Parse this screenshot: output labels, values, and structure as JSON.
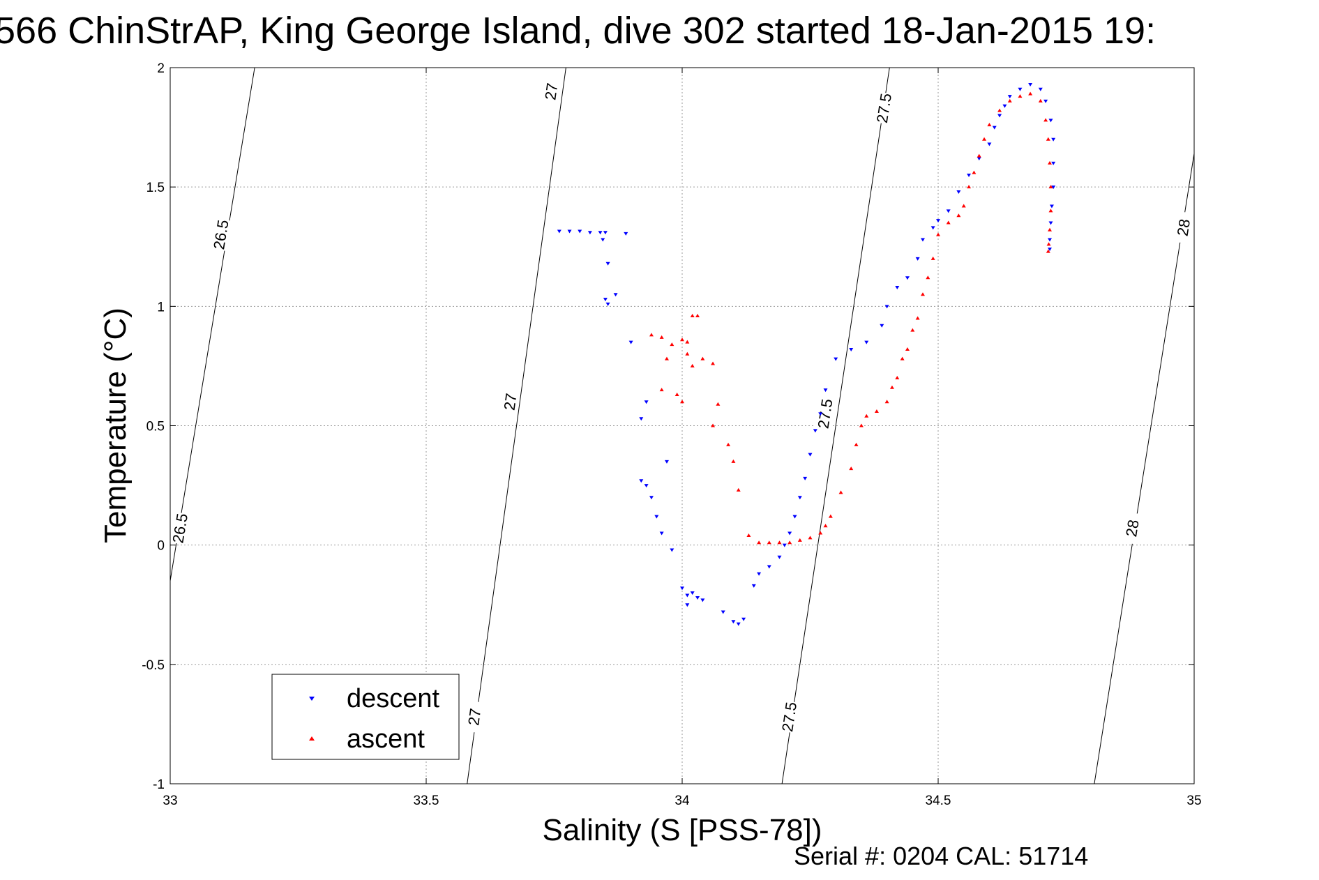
{
  "title": "566 ChinStrAP, King George Island, dive 302 started 18-Jan-2015 19:",
  "footer": "Serial #: 0204  CAL: 51714",
  "chart_data": {
    "type": "scatter",
    "xlabel": "Salinity (S [PSS-78])",
    "ylabel": "Temperature (°C)",
    "xlim": [
      33,
      35
    ],
    "ylim": [
      -1,
      2
    ],
    "xticks": [
      33,
      33.5,
      34,
      34.5,
      35
    ],
    "xtick_labels": [
      "33",
      "33.5",
      "34",
      "34.5",
      "35"
    ],
    "yticks": [
      -1,
      -0.5,
      0,
      0.5,
      1,
      1.5,
      2
    ],
    "ytick_labels": [
      "-1",
      "-0.5",
      "0",
      "0.5",
      "1",
      "1.5",
      "2"
    ],
    "grid": true,
    "legend": "lower-left",
    "density_contours": [
      {
        "label": "26.5",
        "points": [
          [
            33.0,
            -0.15
          ],
          [
            33.165,
            2.0
          ]
        ],
        "label_positions": [
          [
            33.02,
            0.07
          ],
          [
            33.1,
            1.3
          ]
        ]
      },
      {
        "label": "27",
        "points": [
          [
            33.58,
            -1.0
          ],
          [
            33.773,
            2.0
          ]
        ],
        "label_positions": [
          [
            33.595,
            -0.72
          ],
          [
            33.665,
            0.6
          ],
          [
            33.745,
            1.9
          ]
        ]
      },
      {
        "label": "27.5",
        "points": [
          [
            34.195,
            -1.0
          ],
          [
            34.405,
            2.0
          ]
        ],
        "label_positions": [
          [
            34.21,
            -0.72
          ],
          [
            34.28,
            0.55
          ],
          [
            34.395,
            1.83
          ]
        ]
      },
      {
        "label": "28",
        "points": [
          [
            34.805,
            -1.0
          ],
          [
            35.0,
            1.64
          ]
        ],
        "label_positions": [
          [
            34.88,
            0.07
          ],
          [
            34.98,
            1.33
          ]
        ]
      }
    ],
    "series": [
      {
        "name": "descent",
        "color": "#0000ff",
        "marker": "triangle-down",
        "points": [
          [
            33.76,
            1.315
          ],
          [
            33.78,
            1.315
          ],
          [
            33.8,
            1.315
          ],
          [
            33.82,
            1.31
          ],
          [
            33.84,
            1.31
          ],
          [
            33.85,
            1.31
          ],
          [
            33.89,
            1.305
          ],
          [
            33.845,
            1.28
          ],
          [
            33.855,
            1.18
          ],
          [
            33.85,
            1.03
          ],
          [
            33.87,
            1.05
          ],
          [
            33.855,
            1.01
          ],
          [
            33.9,
            0.85
          ],
          [
            33.93,
            0.6
          ],
          [
            33.92,
            0.53
          ],
          [
            33.97,
            0.35
          ],
          [
            33.92,
            0.27
          ],
          [
            33.93,
            0.25
          ],
          [
            33.94,
            0.2
          ],
          [
            33.95,
            0.12
          ],
          [
            33.96,
            0.05
          ],
          [
            33.98,
            -0.02
          ],
          [
            34.0,
            -0.18
          ],
          [
            34.01,
            -0.21
          ],
          [
            34.02,
            -0.2
          ],
          [
            34.03,
            -0.22
          ],
          [
            34.04,
            -0.23
          ],
          [
            34.01,
            -0.25
          ],
          [
            34.08,
            -0.28
          ],
          [
            34.1,
            -0.32
          ],
          [
            34.11,
            -0.33
          ],
          [
            34.12,
            -0.31
          ],
          [
            34.14,
            -0.17
          ],
          [
            34.15,
            -0.12
          ],
          [
            34.17,
            -0.09
          ],
          [
            34.19,
            -0.05
          ],
          [
            34.2,
            0.0
          ],
          [
            34.21,
            0.05
          ],
          [
            34.22,
            0.12
          ],
          [
            34.23,
            0.2
          ],
          [
            34.24,
            0.28
          ],
          [
            34.25,
            0.38
          ],
          [
            34.26,
            0.48
          ],
          [
            34.27,
            0.55
          ],
          [
            34.28,
            0.65
          ],
          [
            34.3,
            0.78
          ],
          [
            34.33,
            0.82
          ],
          [
            34.36,
            0.85
          ],
          [
            34.39,
            0.92
          ],
          [
            34.4,
            1.0
          ],
          [
            34.42,
            1.08
          ],
          [
            34.44,
            1.12
          ],
          [
            34.46,
            1.2
          ],
          [
            34.47,
            1.28
          ],
          [
            34.49,
            1.33
          ],
          [
            34.5,
            1.36
          ],
          [
            34.52,
            1.4
          ],
          [
            34.54,
            1.48
          ],
          [
            34.56,
            1.55
          ],
          [
            34.58,
            1.62
          ],
          [
            34.6,
            1.68
          ],
          [
            34.61,
            1.75
          ],
          [
            34.62,
            1.8
          ],
          [
            34.63,
            1.84
          ],
          [
            34.64,
            1.88
          ],
          [
            34.66,
            1.91
          ],
          [
            34.68,
            1.93
          ],
          [
            34.7,
            1.91
          ],
          [
            34.71,
            1.86
          ],
          [
            34.72,
            1.78
          ],
          [
            34.725,
            1.7
          ],
          [
            34.725,
            1.6
          ],
          [
            34.725,
            1.5
          ],
          [
            34.722,
            1.42
          ],
          [
            34.72,
            1.35
          ],
          [
            34.718,
            1.28
          ],
          [
            34.718,
            1.24
          ]
        ]
      },
      {
        "name": "ascent",
        "color": "#ff0000",
        "marker": "triangle-up",
        "points": [
          [
            33.94,
            0.88
          ],
          [
            33.96,
            0.87
          ],
          [
            33.98,
            0.84
          ],
          [
            34.0,
            0.86
          ],
          [
            34.01,
            0.85
          ],
          [
            34.02,
            0.96
          ],
          [
            34.03,
            0.96
          ],
          [
            34.01,
            0.8
          ],
          [
            34.02,
            0.75
          ],
          [
            33.97,
            0.78
          ],
          [
            33.96,
            0.65
          ],
          [
            33.99,
            0.63
          ],
          [
            34.0,
            0.6
          ],
          [
            34.04,
            0.78
          ],
          [
            34.06,
            0.76
          ],
          [
            34.07,
            0.59
          ],
          [
            34.06,
            0.5
          ],
          [
            34.09,
            0.42
          ],
          [
            34.1,
            0.35
          ],
          [
            34.11,
            0.23
          ],
          [
            34.13,
            0.04
          ],
          [
            34.15,
            0.01
          ],
          [
            34.17,
            0.01
          ],
          [
            34.19,
            0.01
          ],
          [
            34.21,
            0.01
          ],
          [
            34.23,
            0.02
          ],
          [
            34.25,
            0.03
          ],
          [
            34.27,
            0.05
          ],
          [
            34.28,
            0.08
          ],
          [
            34.29,
            0.12
          ],
          [
            34.31,
            0.22
          ],
          [
            34.33,
            0.32
          ],
          [
            34.34,
            0.42
          ],
          [
            34.35,
            0.5
          ],
          [
            34.36,
            0.54
          ],
          [
            34.38,
            0.56
          ],
          [
            34.4,
            0.6
          ],
          [
            34.41,
            0.66
          ],
          [
            34.42,
            0.7
          ],
          [
            34.43,
            0.78
          ],
          [
            34.44,
            0.82
          ],
          [
            34.45,
            0.9
          ],
          [
            34.46,
            0.95
          ],
          [
            34.47,
            1.05
          ],
          [
            34.48,
            1.12
          ],
          [
            34.49,
            1.2
          ],
          [
            34.5,
            1.3
          ],
          [
            34.52,
            1.35
          ],
          [
            34.54,
            1.38
          ],
          [
            34.55,
            1.42
          ],
          [
            34.56,
            1.5
          ],
          [
            34.57,
            1.56
          ],
          [
            34.58,
            1.63
          ],
          [
            34.59,
            1.7
          ],
          [
            34.6,
            1.76
          ],
          [
            34.62,
            1.82
          ],
          [
            34.64,
            1.86
          ],
          [
            34.66,
            1.88
          ],
          [
            34.68,
            1.89
          ],
          [
            34.7,
            1.86
          ],
          [
            34.71,
            1.78
          ],
          [
            34.715,
            1.7
          ],
          [
            34.718,
            1.6
          ],
          [
            34.72,
            1.5
          ],
          [
            34.72,
            1.4
          ],
          [
            34.718,
            1.32
          ],
          [
            34.716,
            1.26
          ],
          [
            34.715,
            1.23
          ]
        ]
      }
    ]
  }
}
